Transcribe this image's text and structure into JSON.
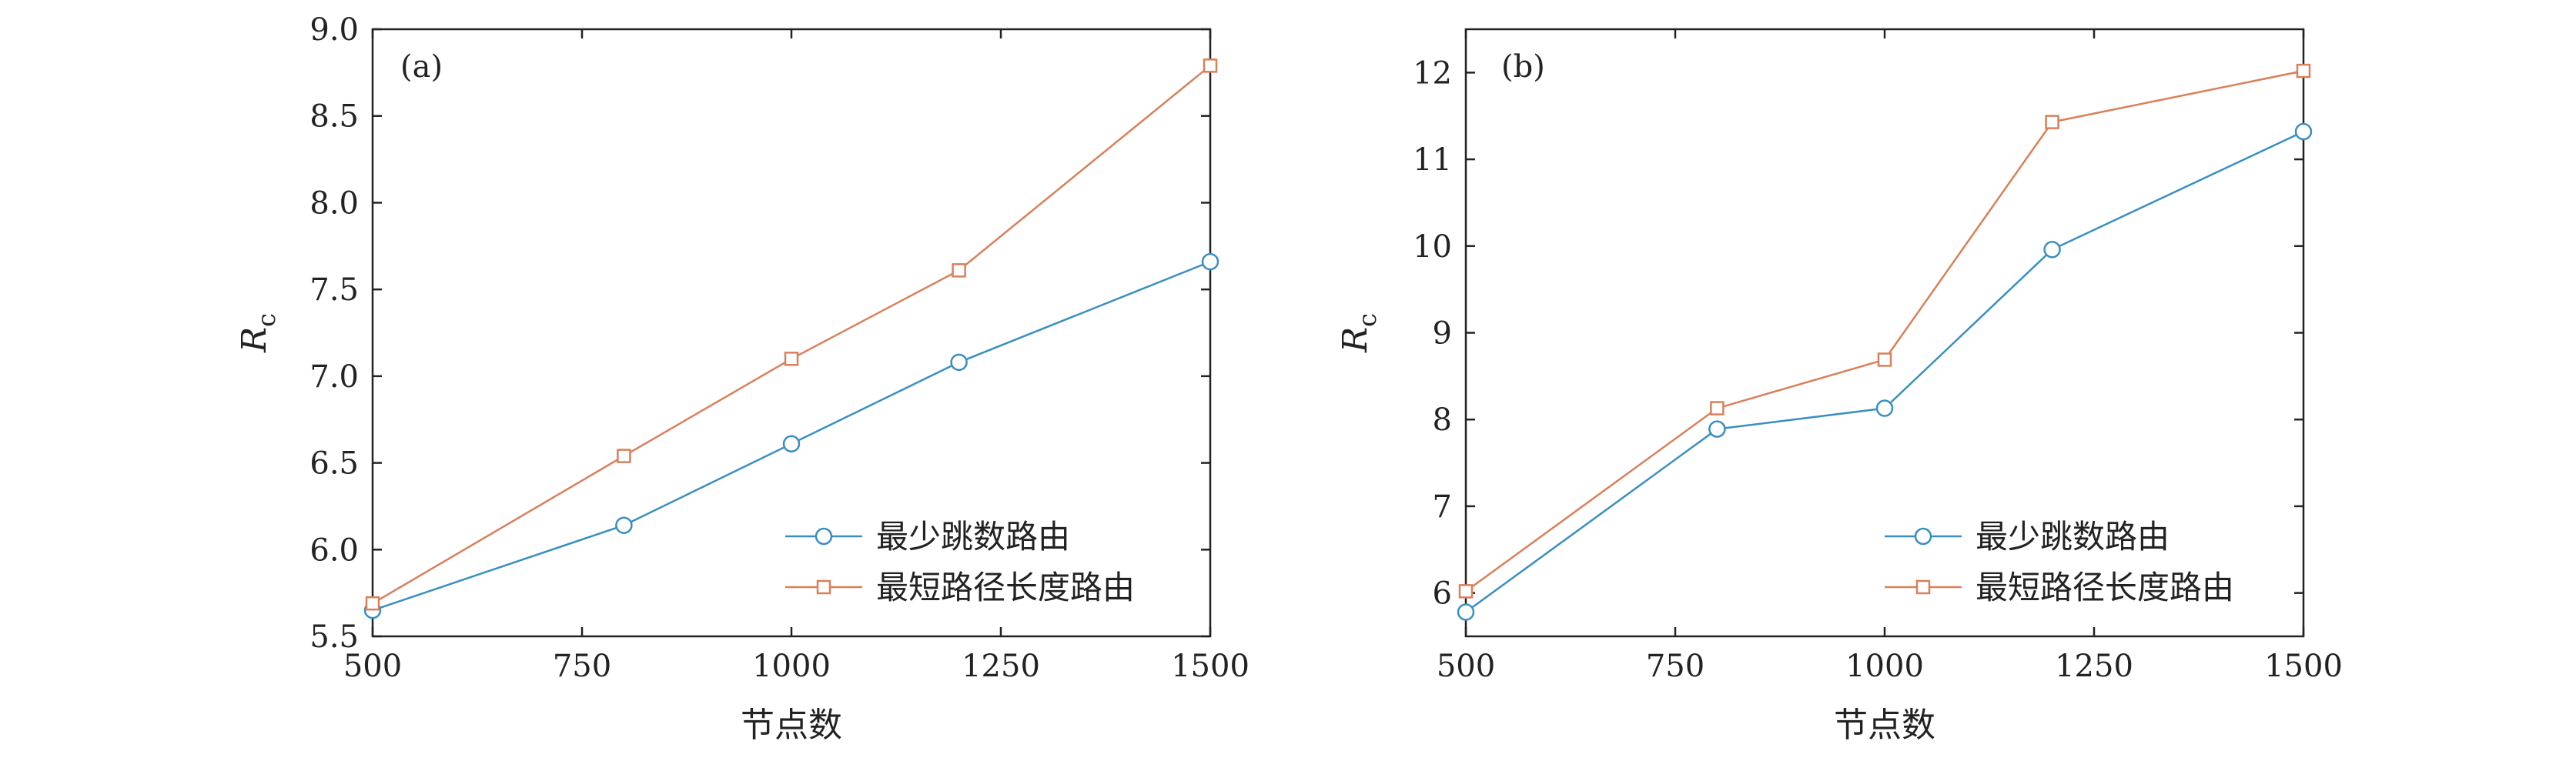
{
  "chart_data": [
    {
      "type": "line",
      "panel_label": "(a)",
      "xlabel": "节点数",
      "ylabel": "R",
      "ylabel_sub": "c",
      "xlim": [
        500,
        1500
      ],
      "ylim": [
        5.5,
        9.0
      ],
      "xticks": [
        "500",
        "750",
        "1000",
        "1250",
        "1500"
      ],
      "yticks": [
        "5.5",
        "6.0",
        "6.5",
        "7.0",
        "7.5",
        "8.0",
        "8.5",
        "9.0"
      ],
      "x": [
        500,
        800,
        1000,
        1200,
        1500
      ],
      "series": [
        {
          "name": "最少跳数路由",
          "marker": "circle",
          "color": "#3a8fc0",
          "values": [
            5.65,
            6.14,
            6.61,
            7.08,
            7.66
          ]
        },
        {
          "name": "最短路径长度路由",
          "marker": "square",
          "color": "#d9805a",
          "values": [
            5.69,
            6.54,
            7.1,
            7.61,
            8.79
          ]
        }
      ],
      "legend": "bottom-right",
      "grid": false
    },
    {
      "type": "line",
      "panel_label": "(b)",
      "xlabel": "节点数",
      "ylabel": "R",
      "ylabel_sub": "c",
      "xlim": [
        500,
        1500
      ],
      "ylim": [
        5.5,
        12.5
      ],
      "xticks": [
        "500",
        "750",
        "1000",
        "1250",
        "1500"
      ],
      "yticks": [
        "6",
        "7",
        "8",
        "9",
        "10",
        "11",
        "12"
      ],
      "x": [
        500,
        800,
        1000,
        1200,
        1500
      ],
      "series": [
        {
          "name": "最少跳数路由",
          "marker": "circle",
          "color": "#3a8fc0",
          "values": [
            5.78,
            7.89,
            8.13,
            9.96,
            11.32
          ]
        },
        {
          "name": "最短路径长度路由",
          "marker": "square",
          "color": "#d9805a",
          "values": [
            6.02,
            8.13,
            8.69,
            11.43,
            12.02
          ]
        }
      ],
      "legend": "bottom-right",
      "grid": false
    }
  ]
}
